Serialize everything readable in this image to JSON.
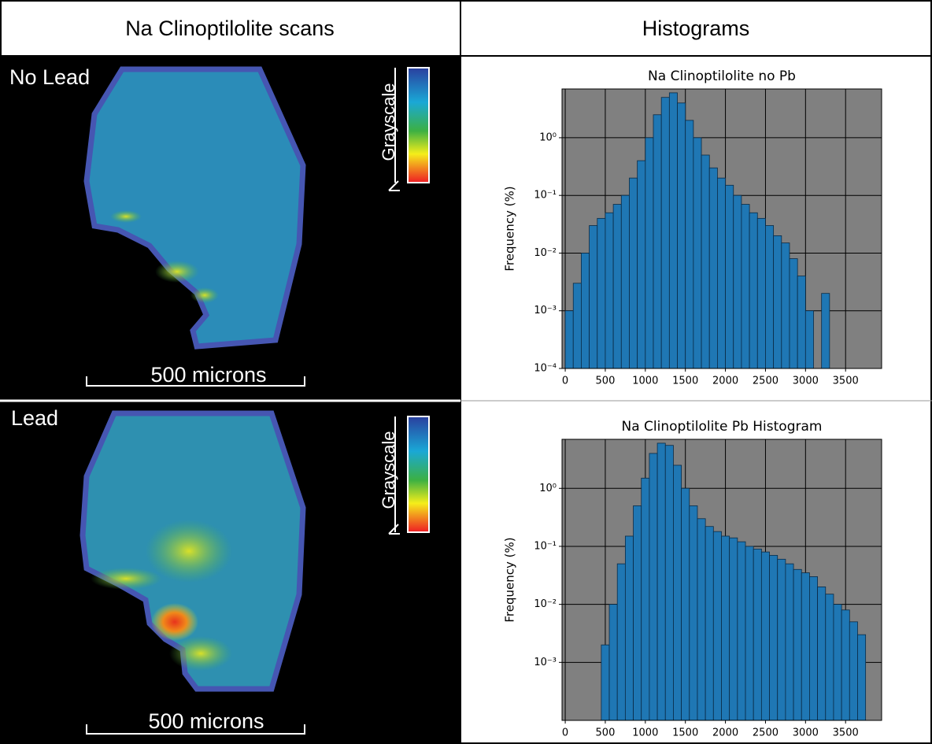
{
  "table": {
    "headers": [
      "Na Clinoptilolite scans",
      "Histograms"
    ]
  },
  "scans": [
    {
      "label": "No Lead",
      "colorbar_label": "Grayscale",
      "scale_bar": "500 microns"
    },
    {
      "label": "Lead",
      "colorbar_label": "Grayscale",
      "scale_bar": "500 microns"
    }
  ],
  "chart_data": [
    {
      "type": "histogram",
      "title": "Na Clinoptilolite no Pb",
      "ylabel": "Frequency (%)",
      "bins": [
        0,
        100,
        200,
        300,
        400,
        500,
        600,
        700,
        800,
        900,
        1000,
        1100,
        1200,
        1300,
        1400,
        1500,
        1600,
        1700,
        1800,
        1900,
        2000,
        2100,
        2200,
        2300,
        2400,
        2500,
        2600,
        2700,
        2800,
        2900,
        3000,
        3100,
        3200,
        3300
      ],
      "values": [
        0.001,
        0.003,
        0.01,
        0.03,
        0.04,
        0.05,
        0.07,
        0.1,
        0.2,
        0.4,
        1.0,
        2.5,
        5,
        6,
        4,
        2,
        1,
        0.5,
        0.3,
        0.2,
        0.15,
        0.1,
        0.07,
        0.05,
        0.04,
        0.03,
        0.02,
        0.015,
        0.008,
        0.004,
        0.001,
        0,
        0.002
      ],
      "color": "#1f77b4",
      "edge_color": "#0a2a45",
      "background": "#808080",
      "xlim": [
        -40,
        3950
      ],
      "ylim": [
        0.0001,
        7
      ],
      "log_y": true,
      "grid": true,
      "xticks": [
        0,
        500,
        1000,
        1500,
        2000,
        2500,
        3000,
        3500
      ],
      "yticks": [
        {
          "value": 0.0001,
          "label": "10⁻⁴"
        },
        {
          "value": 0.001,
          "label": "10⁻³"
        },
        {
          "value": 0.01,
          "label": "10⁻²"
        },
        {
          "value": 0.1,
          "label": "10⁻¹"
        },
        {
          "value": 1,
          "label": "10⁰"
        }
      ]
    },
    {
      "type": "histogram",
      "title": "Na Clinoptilolite Pb Histogram",
      "ylabel": "Frequency (%)",
      "bins": [
        450,
        550,
        650,
        750,
        850,
        950,
        1050,
        1150,
        1250,
        1350,
        1450,
        1550,
        1650,
        1750,
        1850,
        1950,
        2050,
        2150,
        2250,
        2350,
        2450,
        2550,
        2650,
        2750,
        2850,
        2950,
        3050,
        3150,
        3250,
        3350,
        3450,
        3550,
        3650,
        3750
      ],
      "values": [
        0.002,
        0.01,
        0.05,
        0.15,
        0.5,
        1.5,
        4,
        6,
        5.5,
        2.5,
        1,
        0.5,
        0.3,
        0.22,
        0.18,
        0.15,
        0.14,
        0.12,
        0.1,
        0.09,
        0.08,
        0.07,
        0.06,
        0.05,
        0.04,
        0.035,
        0.03,
        0.02,
        0.015,
        0.01,
        0.008,
        0.005,
        0.003
      ],
      "color": "#1f77b4",
      "edge_color": "#0a2a45",
      "background": "#808080",
      "xlim": [
        -40,
        3950
      ],
      "ylim": [
        0.0001,
        7
      ],
      "log_y": true,
      "grid": true,
      "xticks": [
        0,
        500,
        1000,
        1500,
        2000,
        2500,
        3000,
        3500
      ],
      "yticks": [
        {
          "value": 0.001,
          "label": "10⁻³"
        },
        {
          "value": 0.01,
          "label": "10⁻²"
        },
        {
          "value": 0.1,
          "label": "10⁻¹"
        },
        {
          "value": 1,
          "label": "10⁰"
        }
      ]
    }
  ]
}
